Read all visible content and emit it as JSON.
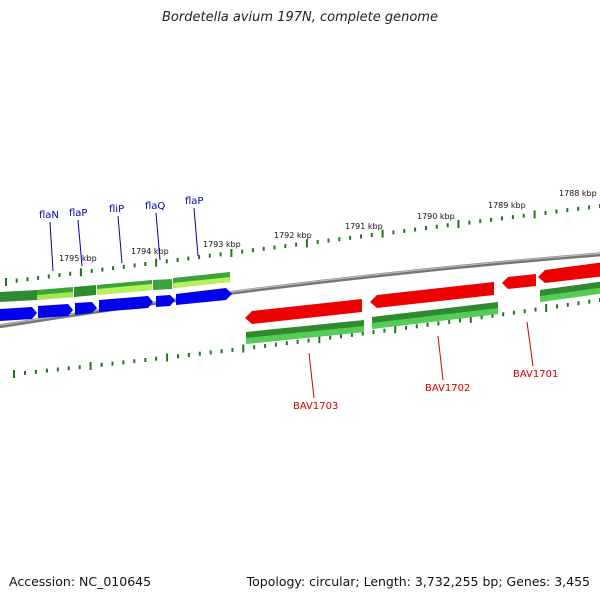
{
  "title": "Bordetella avium 197N, complete genome",
  "footer": {
    "accession": "Accession: NC_010645",
    "summary": "Topology: circular; Length: 3,732,255 bp; Genes: 3,455"
  },
  "colors": {
    "forward_cds": "#0000ee",
    "reverse_cds": "#ee0000",
    "gene_dark": "#2a8a2a",
    "gene_mid": "#33bb33",
    "gene_light": "#aaee44",
    "ticks": "#1a7a1a",
    "backbone": "#888888"
  },
  "ticks": [
    {
      "label": "1795 kbp"
    },
    {
      "label": "1794 kbp"
    },
    {
      "label": "1793 kbp"
    },
    {
      "label": "1792 kbp"
    },
    {
      "label": "1791 kbp"
    },
    {
      "label": "1790 kbp"
    },
    {
      "label": "1789 kbp"
    },
    {
      "label": "1788 kbp"
    }
  ],
  "forward_genes": [
    {
      "label": "flaN"
    },
    {
      "label": "flaP"
    },
    {
      "label": "fliP"
    },
    {
      "label": "flaQ"
    },
    {
      "label": "flaP"
    }
  ],
  "reverse_genes": [
    {
      "label": "BAV1703"
    },
    {
      "label": "BAV1702"
    },
    {
      "label": "BAV1701"
    }
  ]
}
